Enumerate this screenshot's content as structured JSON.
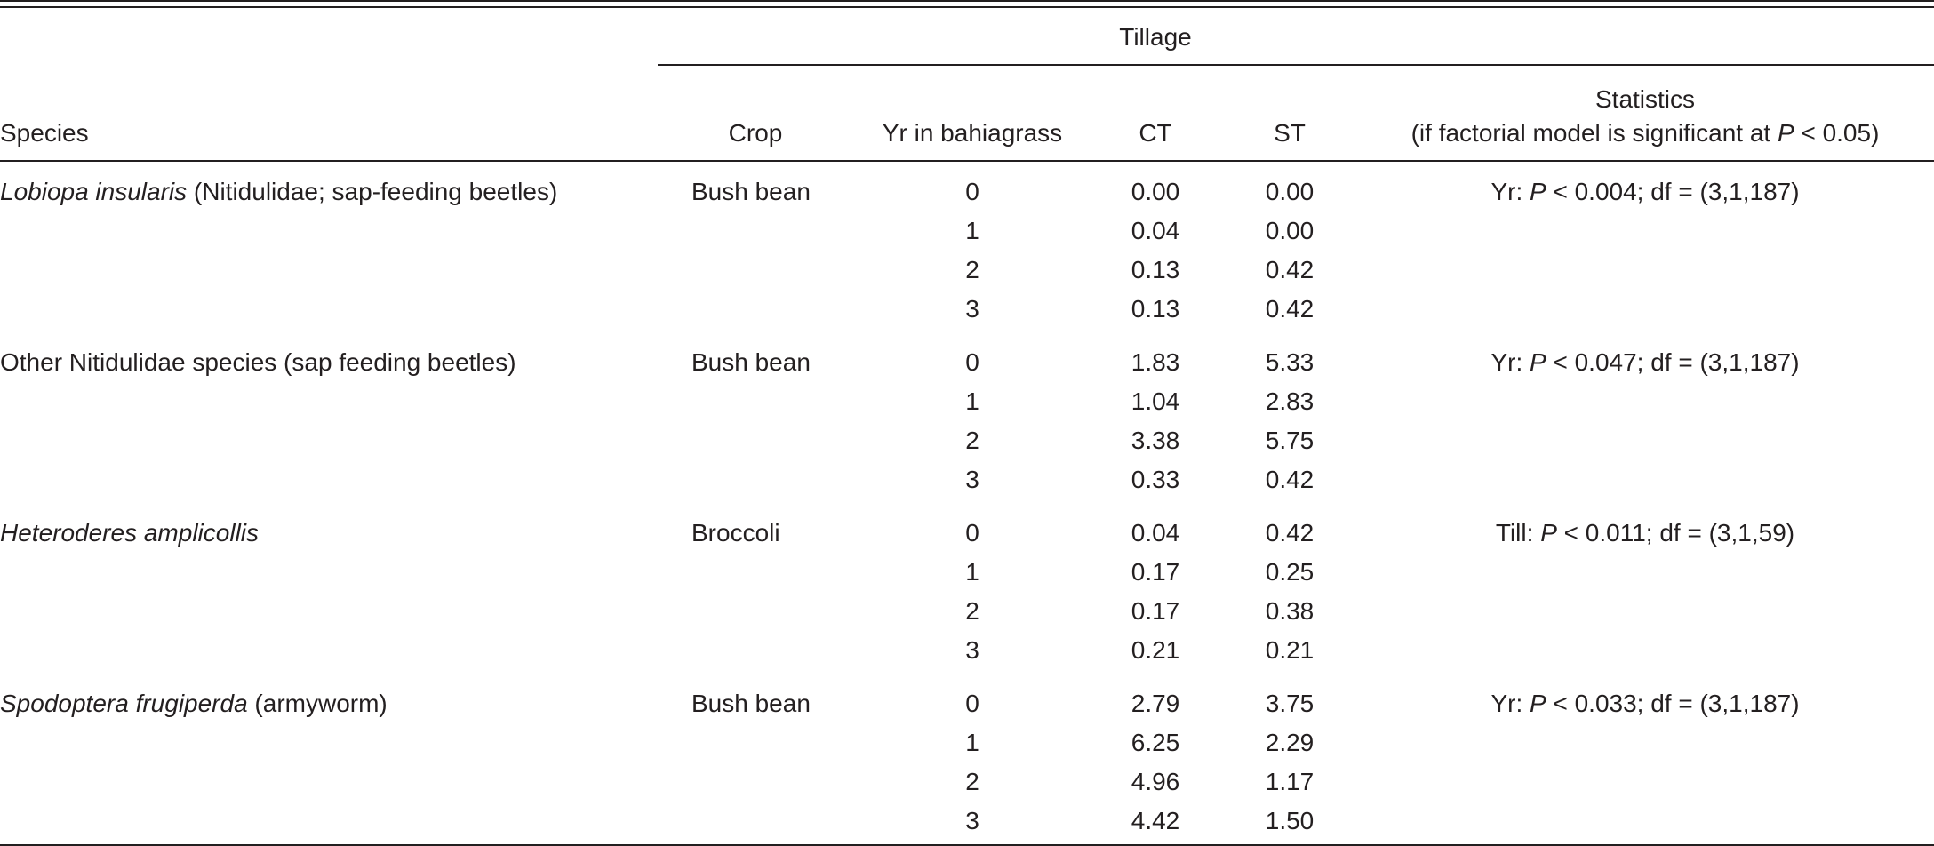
{
  "header": {
    "tillage": "Tillage",
    "species": "Species",
    "crop": "Crop",
    "yr": "Yr in bahiagrass",
    "ct": "CT",
    "st": "ST",
    "stats_line1": "Statistics",
    "stats_line2_pre": "(if factorial model is significant at ",
    "stats_line2_p": "P",
    "stats_line2_post": " < 0.05)"
  },
  "groups": [
    {
      "species_italic": "Lobiopa insularis",
      "species_rest": " (Nitidulidae; sap-feeding beetles)",
      "crop": "Bush bean",
      "stats_pre": "Yr: ",
      "stats_p": "P",
      "stats_post": " < 0.004; df = (3,1,187)",
      "rows": [
        {
          "yr": "0",
          "ct": "0.00",
          "st": "0.00"
        },
        {
          "yr": "1",
          "ct": "0.04",
          "st": "0.00"
        },
        {
          "yr": "2",
          "ct": "0.13",
          "st": "0.42"
        },
        {
          "yr": "3",
          "ct": "0.13",
          "st": "0.42"
        }
      ]
    },
    {
      "species_italic": "",
      "species_rest": "Other Nitidulidae species (sap feeding beetles)",
      "crop": "Bush bean",
      "stats_pre": "Yr: ",
      "stats_p": "P",
      "stats_post": " < 0.047; df = (3,1,187)",
      "rows": [
        {
          "yr": "0",
          "ct": "1.83",
          "st": "5.33"
        },
        {
          "yr": "1",
          "ct": "1.04",
          "st": "2.83"
        },
        {
          "yr": "2",
          "ct": "3.38",
          "st": "5.75"
        },
        {
          "yr": "3",
          "ct": "0.33",
          "st": "0.42"
        }
      ]
    },
    {
      "species_italic": "Heteroderes amplicollis",
      "species_rest": "",
      "crop": "Broccoli",
      "stats_pre": "Till: ",
      "stats_p": "P",
      "stats_post": " < 0.011; df = (3,1,59)",
      "rows": [
        {
          "yr": "0",
          "ct": "0.04",
          "st": "0.42"
        },
        {
          "yr": "1",
          "ct": "0.17",
          "st": "0.25"
        },
        {
          "yr": "2",
          "ct": "0.17",
          "st": "0.38"
        },
        {
          "yr": "3",
          "ct": "0.21",
          "st": "0.21"
        }
      ]
    },
    {
      "species_italic": "Spodoptera frugiperda",
      "species_rest": " (armyworm)",
      "crop": "Bush bean",
      "stats_pre": "Yr: ",
      "stats_p": "P",
      "stats_post": " < 0.033; df = (3,1,187)",
      "rows": [
        {
          "yr": "0",
          "ct": "2.79",
          "st": "3.75"
        },
        {
          "yr": "1",
          "ct": "6.25",
          "st": "2.29"
        },
        {
          "yr": "2",
          "ct": "4.96",
          "st": "1.17"
        },
        {
          "yr": "3",
          "ct": "4.42",
          "st": "1.50"
        }
      ]
    }
  ]
}
